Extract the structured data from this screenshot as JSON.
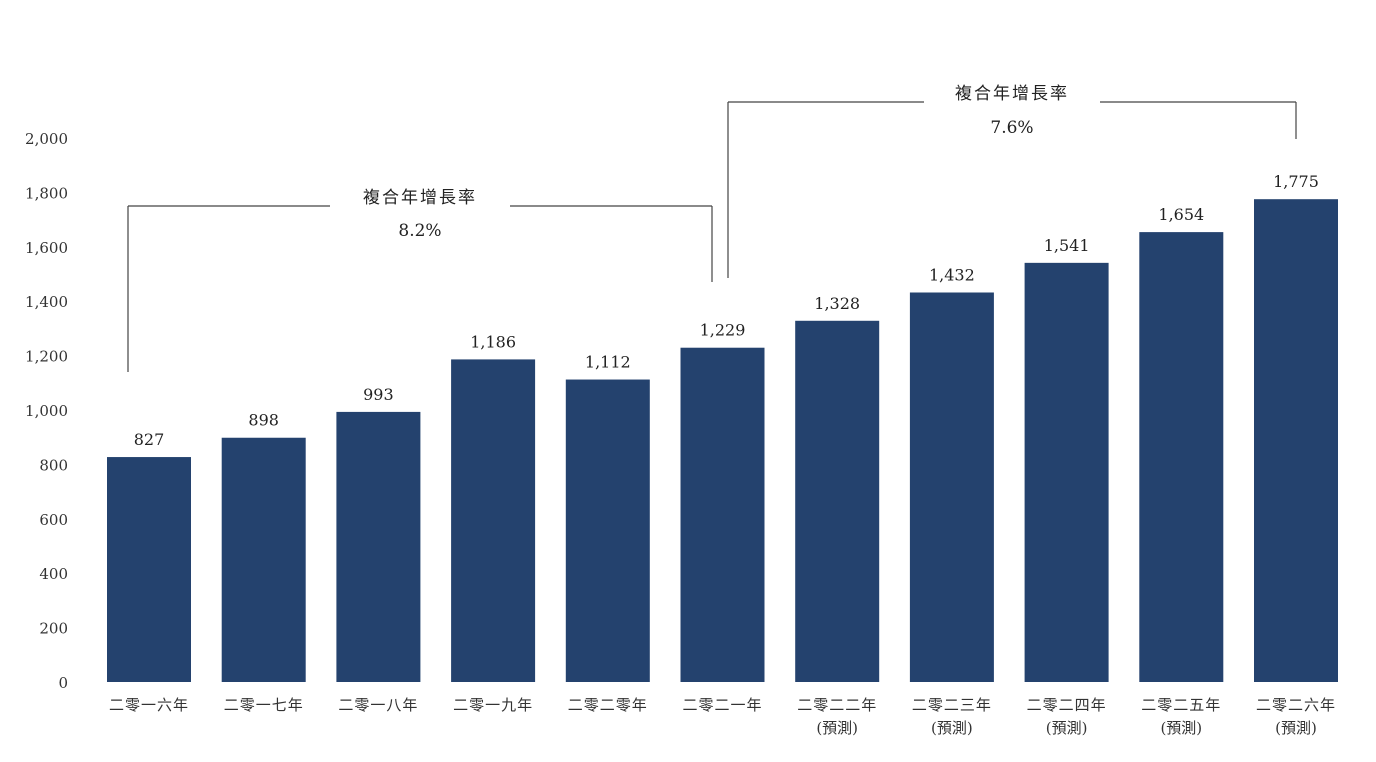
{
  "chart_data": {
    "type": "bar",
    "categories": [
      {
        "line1": "二零一六年",
        "line2": ""
      },
      {
        "line1": "二零一七年",
        "line2": ""
      },
      {
        "line1": "二零一八年",
        "line2": ""
      },
      {
        "line1": "二零一九年",
        "line2": ""
      },
      {
        "line1": "二零二零年",
        "line2": ""
      },
      {
        "line1": "二零二一年",
        "line2": ""
      },
      {
        "line1": "二零二二年",
        "line2": "(預測)"
      },
      {
        "line1": "二零二三年",
        "line2": "(預測)"
      },
      {
        "line1": "二零二四年",
        "line2": "(預測)"
      },
      {
        "line1": "二零二五年",
        "line2": "(預測)"
      },
      {
        "line1": "二零二六年",
        "line2": "(預測)"
      }
    ],
    "values": [
      827,
      898,
      993,
      1186,
      1112,
      1229,
      1328,
      1432,
      1541,
      1654,
      1775
    ],
    "value_labels": [
      "827",
      "898",
      "993",
      "1,186",
      "1,112",
      "1,229",
      "1,328",
      "1,432",
      "1,541",
      "1,654",
      "1,775"
    ],
    "ylim": [
      0,
      2000
    ],
    "yticks": [
      0,
      200,
      400,
      600,
      800,
      1000,
      1200,
      1400,
      1600,
      1800,
      2000
    ],
    "ytick_labels": [
      "0",
      "200",
      "400",
      "600",
      "800",
      "1,000",
      "1,200",
      "1,400",
      "1,600",
      "1,800",
      "2,000"
    ],
    "title": "",
    "xlabel": "",
    "ylabel": "",
    "grid": false,
    "legend": "none",
    "bar_color": "#24426e",
    "annotations": [
      {
        "label": "複合年增長率",
        "value": "8.2%",
        "from_index": 0,
        "to_index": 5
      },
      {
        "label": "複合年增長率",
        "value": "7.6%",
        "from_index": 5,
        "to_index": 10
      }
    ]
  }
}
